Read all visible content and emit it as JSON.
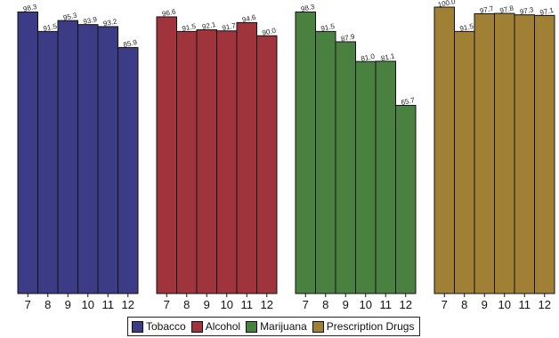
{
  "chart_data": {
    "type": "bar",
    "categories": [
      "7",
      "8",
      "9",
      "10",
      "11",
      "12"
    ],
    "ylim": [
      0,
      100
    ],
    "grid": false,
    "legend_position": "bottom",
    "series": [
      {
        "name": "Tobacco",
        "color": "#3b3b86",
        "values": [
          98.3,
          91.5,
          95.3,
          93.9,
          93.2,
          85.9
        ],
        "labels": [
          "98.3",
          "91.5",
          "95.3",
          "93.9",
          "93.2",
          "85.9"
        ]
      },
      {
        "name": "Alcohol",
        "color": "#a0343c",
        "values": [
          96.6,
          91.5,
          92.1,
          91.7,
          94.6,
          90.0
        ],
        "labels": [
          "96.6",
          "91.5",
          "92.1",
          "91.7",
          "94.6",
          "90.0"
        ]
      },
      {
        "name": "Marijuana",
        "color": "#4a8040",
        "values": [
          98.3,
          91.5,
          87.9,
          81.0,
          81.1,
          65.7
        ],
        "labels": [
          "98.3",
          "91.5",
          "87.9",
          "81.0",
          "81.1",
          "65.7"
        ]
      },
      {
        "name": "Prescription Drugs",
        "color": "#a08035",
        "values": [
          100.0,
          91.5,
          97.7,
          97.8,
          97.3,
          97.1
        ],
        "labels": [
          "100.0",
          "91.5",
          "97.7",
          "97.8",
          "97.3",
          "97.1"
        ]
      }
    ]
  }
}
